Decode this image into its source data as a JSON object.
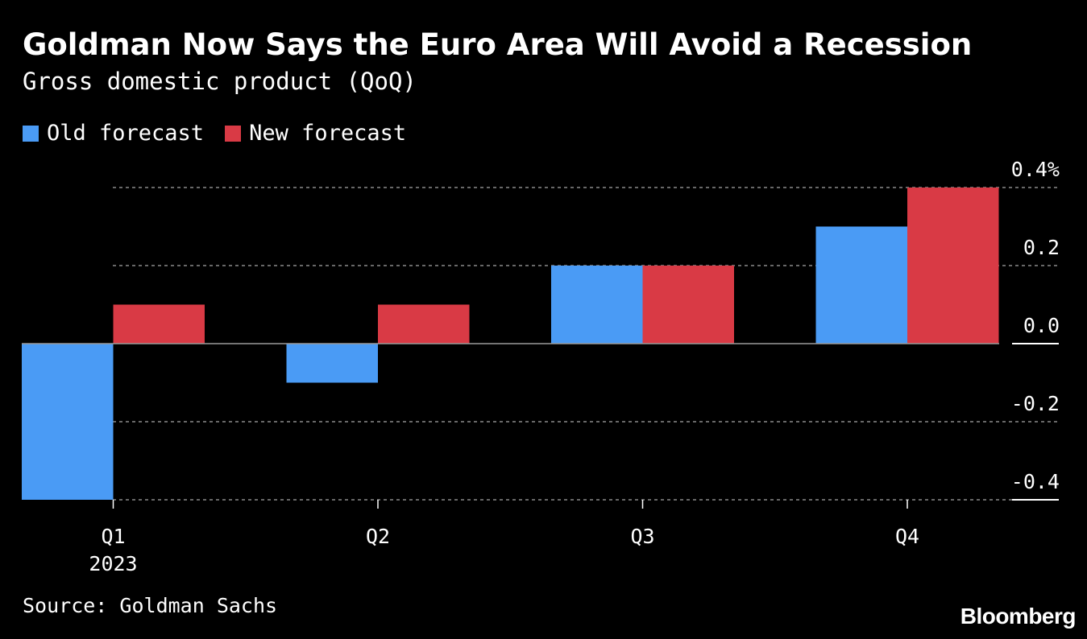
{
  "header": {
    "title": "Goldman Now Says the Euro Area Will Avoid a Recession",
    "subtitle": "Gross domestic product (QoQ)"
  },
  "legend": {
    "items": [
      {
        "label": "Old forecast",
        "color": "#4a9bf5"
      },
      {
        "label": "New forecast",
        "color": "#d93a45"
      }
    ]
  },
  "footer": {
    "source": "Source: Goldman Sachs",
    "brand": "Bloomberg"
  },
  "chart_data": {
    "type": "bar",
    "categories": [
      "Q1",
      "Q2",
      "Q3",
      "Q4"
    ],
    "category_sublabels": [
      "2023",
      "",
      "",
      ""
    ],
    "series": [
      {
        "name": "Old forecast",
        "color": "#4a9bf5",
        "values": [
          -0.4,
          -0.1,
          0.2,
          0.3
        ]
      },
      {
        "name": "New forecast",
        "color": "#d93a45",
        "values": [
          0.1,
          0.1,
          0.2,
          0.4
        ]
      }
    ],
    "ylim": [
      -0.4,
      0.4
    ],
    "yticks": [
      {
        "value": 0.4,
        "label": "0.4%"
      },
      {
        "value": 0.2,
        "label": "0.2"
      },
      {
        "value": 0.0,
        "label": "0.0"
      },
      {
        "value": -0.2,
        "label": "-0.2"
      },
      {
        "value": -0.4,
        "label": "-0.4"
      }
    ],
    "grid": true,
    "legend_position": "top-left"
  }
}
